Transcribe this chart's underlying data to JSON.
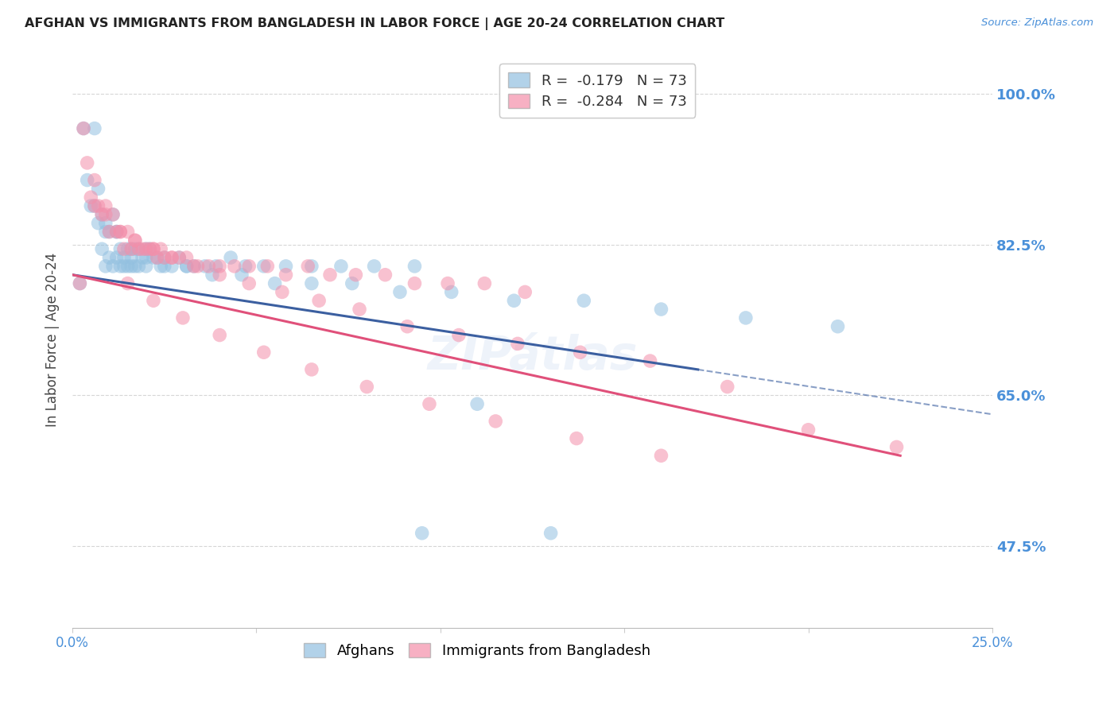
{
  "title": "AFGHAN VS IMMIGRANTS FROM BANGLADESH IN LABOR FORCE | AGE 20-24 CORRELATION CHART",
  "source": "Source: ZipAtlas.com",
  "ylabel": "In Labor Force | Age 20-24",
  "xlim": [
    0.0,
    0.25
  ],
  "ylim": [
    0.38,
    1.05
  ],
  "ytick_labels_right": [
    "47.5%",
    "65.0%",
    "82.5%",
    "100.0%"
  ],
  "ytick_positions_right": [
    0.475,
    0.65,
    0.825,
    1.0
  ],
  "xticks": [
    0.0,
    0.05,
    0.1,
    0.15,
    0.2,
    0.25
  ],
  "xtick_labels": [
    "0.0%",
    "",
    "",
    "",
    "",
    "25.0%"
  ],
  "legend_r1": "-0.179",
  "legend_n1": "73",
  "legend_r2": "-0.284",
  "legend_n2": "73",
  "color_afghan": "#92C0E0",
  "color_bangladesh": "#F48FAA",
  "color_line_afghan": "#3B5FA0",
  "color_line_bangladesh": "#E0507A",
  "color_axis_labels": "#4A90D9",
  "background_color": "#FFFFFF",
  "grid_color": "#CCCCCC",
  "afghan_x": [
    0.002,
    0.003,
    0.004,
    0.005,
    0.006,
    0.007,
    0.007,
    0.008,
    0.008,
    0.009,
    0.009,
    0.01,
    0.01,
    0.011,
    0.011,
    0.012,
    0.012,
    0.013,
    0.013,
    0.014,
    0.014,
    0.015,
    0.015,
    0.016,
    0.016,
    0.017,
    0.017,
    0.018,
    0.018,
    0.019,
    0.02,
    0.02,
    0.021,
    0.022,
    0.023,
    0.024,
    0.025,
    0.027,
    0.029,
    0.031,
    0.033,
    0.036,
    0.039,
    0.043,
    0.047,
    0.052,
    0.058,
    0.065,
    0.073,
    0.082,
    0.093,
    0.006,
    0.009,
    0.012,
    0.016,
    0.02,
    0.025,
    0.031,
    0.038,
    0.046,
    0.055,
    0.065,
    0.076,
    0.089,
    0.103,
    0.12,
    0.139,
    0.16,
    0.183,
    0.208,
    0.095,
    0.11,
    0.13
  ],
  "afghan_y": [
    0.78,
    0.96,
    0.9,
    0.87,
    0.96,
    0.89,
    0.85,
    0.86,
    0.82,
    0.84,
    0.8,
    0.84,
    0.81,
    0.86,
    0.8,
    0.84,
    0.81,
    0.82,
    0.8,
    0.81,
    0.8,
    0.82,
    0.8,
    0.81,
    0.8,
    0.82,
    0.8,
    0.82,
    0.8,
    0.81,
    0.82,
    0.8,
    0.82,
    0.81,
    0.81,
    0.8,
    0.81,
    0.8,
    0.81,
    0.8,
    0.8,
    0.8,
    0.8,
    0.81,
    0.8,
    0.8,
    0.8,
    0.8,
    0.8,
    0.8,
    0.8,
    0.87,
    0.85,
    0.84,
    0.82,
    0.81,
    0.8,
    0.8,
    0.79,
    0.79,
    0.78,
    0.78,
    0.78,
    0.77,
    0.77,
    0.76,
    0.76,
    0.75,
    0.74,
    0.73,
    0.49,
    0.64,
    0.49
  ],
  "bangladesh_x": [
    0.002,
    0.003,
    0.004,
    0.005,
    0.006,
    0.007,
    0.008,
    0.009,
    0.01,
    0.011,
    0.012,
    0.013,
    0.014,
    0.015,
    0.016,
    0.017,
    0.018,
    0.019,
    0.02,
    0.021,
    0.022,
    0.023,
    0.024,
    0.025,
    0.027,
    0.029,
    0.031,
    0.034,
    0.037,
    0.04,
    0.044,
    0.048,
    0.053,
    0.058,
    0.064,
    0.07,
    0.077,
    0.085,
    0.093,
    0.102,
    0.112,
    0.123,
    0.006,
    0.009,
    0.013,
    0.017,
    0.022,
    0.027,
    0.033,
    0.04,
    0.048,
    0.057,
    0.067,
    0.078,
    0.091,
    0.105,
    0.121,
    0.138,
    0.157,
    0.178,
    0.2,
    0.224,
    0.015,
    0.022,
    0.03,
    0.04,
    0.052,
    0.065,
    0.08,
    0.097,
    0.115,
    0.137,
    0.16
  ],
  "bangladesh_y": [
    0.78,
    0.96,
    0.92,
    0.88,
    0.9,
    0.87,
    0.86,
    0.87,
    0.84,
    0.86,
    0.84,
    0.84,
    0.82,
    0.84,
    0.82,
    0.83,
    0.82,
    0.82,
    0.82,
    0.82,
    0.82,
    0.81,
    0.82,
    0.81,
    0.81,
    0.81,
    0.81,
    0.8,
    0.8,
    0.8,
    0.8,
    0.8,
    0.8,
    0.79,
    0.8,
    0.79,
    0.79,
    0.79,
    0.78,
    0.78,
    0.78,
    0.77,
    0.87,
    0.86,
    0.84,
    0.83,
    0.82,
    0.81,
    0.8,
    0.79,
    0.78,
    0.77,
    0.76,
    0.75,
    0.73,
    0.72,
    0.71,
    0.7,
    0.69,
    0.66,
    0.61,
    0.59,
    0.78,
    0.76,
    0.74,
    0.72,
    0.7,
    0.68,
    0.66,
    0.64,
    0.62,
    0.6,
    0.58
  ],
  "line_afghan_x0": 0.0,
  "line_afghan_y0": 0.79,
  "line_afghan_x1": 0.17,
  "line_afghan_y1": 0.68,
  "line_afghan_dash_x0": 0.17,
  "line_afghan_dash_y0": 0.68,
  "line_afghan_dash_x1": 0.25,
  "line_afghan_dash_y1": 0.628,
  "line_bangladesh_x0": 0.0,
  "line_bangladesh_y0": 0.79,
  "line_bangladesh_x1": 0.225,
  "line_bangladesh_y1": 0.58
}
